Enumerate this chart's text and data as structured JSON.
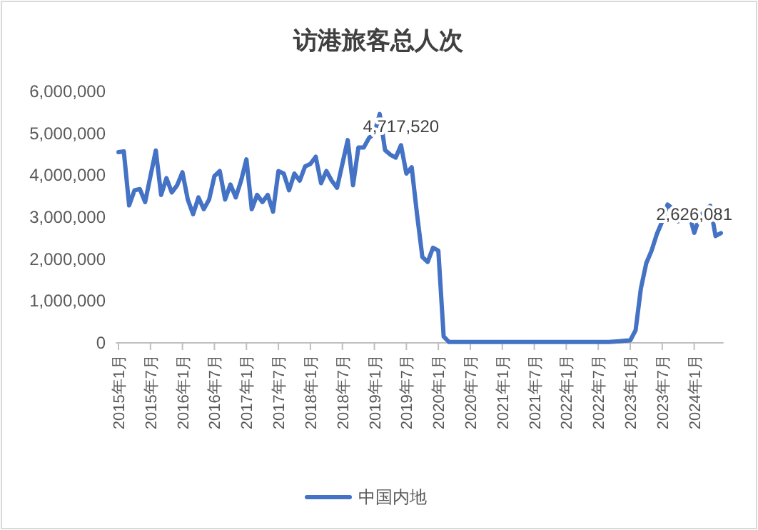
{
  "chart_data": {
    "type": "line",
    "title": "访港旅客总人次",
    "categories": [
      "2015年1月",
      null,
      null,
      null,
      null,
      null,
      "2015年7月",
      null,
      null,
      null,
      null,
      null,
      "2016年1月",
      null,
      null,
      null,
      null,
      null,
      "2016年7月",
      null,
      null,
      null,
      null,
      null,
      "2017年1月",
      null,
      null,
      null,
      null,
      null,
      "2017年7月",
      null,
      null,
      null,
      null,
      null,
      "2018年1月",
      null,
      null,
      null,
      null,
      null,
      "2018年7月",
      null,
      null,
      null,
      null,
      null,
      "2019年1月",
      null,
      null,
      null,
      null,
      null,
      "2019年7月",
      null,
      null,
      null,
      null,
      null,
      "2020年1月",
      null,
      null,
      null,
      null,
      null,
      "2020年7月",
      null,
      null,
      null,
      null,
      null,
      "2021年1月",
      null,
      null,
      null,
      null,
      null,
      "2021年7月",
      null,
      null,
      null,
      null,
      null,
      "2022年1月",
      null,
      null,
      null,
      null,
      null,
      "2022年7月",
      null,
      null,
      null,
      null,
      null,
      "2023年1月",
      null,
      null,
      null,
      null,
      null,
      "2023年7月",
      null,
      null,
      null,
      null,
      null,
      "2024年1月",
      null,
      null,
      null,
      null,
      null
    ],
    "series": [
      {
        "name": "中国内地",
        "color": "#4472c4",
        "values": [
          4550000,
          4570000,
          3280000,
          3640000,
          3670000,
          3360000,
          3980000,
          4590000,
          3530000,
          3930000,
          3590000,
          3760000,
          4070000,
          3420000,
          3070000,
          3470000,
          3190000,
          3420000,
          3980000,
          4100000,
          3420000,
          3780000,
          3470000,
          3870000,
          4380000,
          3190000,
          3530000,
          3360000,
          3530000,
          3130000,
          4100000,
          4040000,
          3640000,
          4040000,
          3870000,
          4210000,
          4270000,
          4440000,
          3810000,
          4100000,
          3870000,
          3700000,
          4270000,
          4840000,
          3760000,
          4660000,
          4660000,
          4890000,
          5000000,
          5460000,
          4600000,
          4490000,
          4420000,
          4717520,
          4040000,
          4190000,
          3070000,
          2050000,
          1930000,
          2270000,
          2200000,
          150000,
          20000,
          20000,
          20000,
          20000,
          20000,
          20000,
          20000,
          20000,
          20000,
          20000,
          20000,
          20000,
          20000,
          20000,
          20000,
          20000,
          20000,
          20000,
          20000,
          20000,
          20000,
          20000,
          20000,
          20000,
          20000,
          20000,
          20000,
          20000,
          20000,
          20000,
          20000,
          30000,
          40000,
          50000,
          60000,
          300000,
          1300000,
          1900000,
          2200000,
          2600000,
          2900000,
          3300000,
          3200000,
          2900000,
          3000000,
          3100000,
          2626081,
          3000000,
          3150000,
          3270000,
          2550000,
          2620000
        ],
        "value_labels": [
          null,
          null,
          null,
          null,
          null,
          null,
          null,
          null,
          null,
          null,
          null,
          null,
          null,
          null,
          null,
          null,
          null,
          null,
          null,
          null,
          null,
          null,
          null,
          null,
          null,
          null,
          null,
          null,
          null,
          null,
          null,
          null,
          null,
          null,
          null,
          null,
          null,
          null,
          null,
          null,
          null,
          null,
          null,
          null,
          null,
          null,
          null,
          null,
          null,
          null,
          null,
          null,
          null,
          "4,717,520",
          null,
          null,
          null,
          null,
          null,
          null,
          null,
          null,
          null,
          null,
          null,
          null,
          null,
          null,
          null,
          null,
          null,
          null,
          null,
          null,
          null,
          null,
          null,
          null,
          null,
          null,
          null,
          null,
          null,
          null,
          null,
          null,
          null,
          null,
          null,
          null,
          null,
          null,
          null,
          null,
          null,
          null,
          null,
          null,
          null,
          null,
          null,
          null,
          null,
          null,
          null,
          null,
          null,
          null,
          "2,626,081",
          null,
          null,
          null,
          null,
          null
        ]
      }
    ],
    "ylim": [
      0,
      6000000
    ],
    "yticks": [
      0,
      {
        "value": 1000000,
        "label": "1,000,000"
      },
      {
        "value": 2000000,
        "label": "2,000,000"
      },
      {
        "value": 3000000,
        "label": "3,000,000"
      },
      {
        "value": 4000000,
        "label": "4,000,000"
      },
      {
        "value": 5000000,
        "label": "5,000,000"
      },
      {
        "value": 6000000,
        "label": "6,000,000"
      }
    ],
    "grid": false,
    "legend": "bottom"
  }
}
